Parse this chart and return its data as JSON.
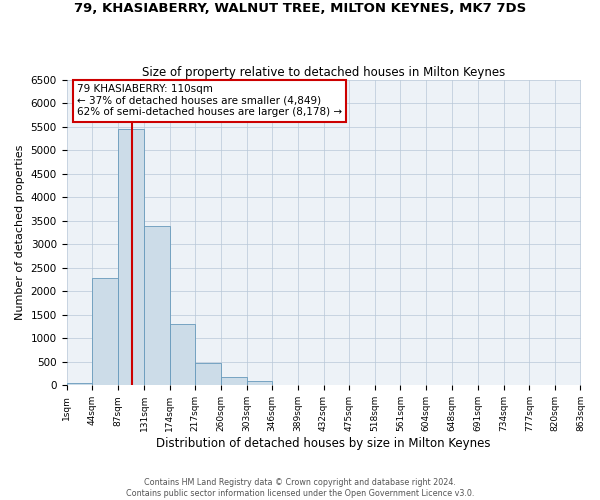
{
  "title": "79, KHASIABERRY, WALNUT TREE, MILTON KEYNES, MK7 7DS",
  "subtitle": "Size of property relative to detached houses in Milton Keynes",
  "xlabel": "Distribution of detached houses by size in Milton Keynes",
  "ylabel": "Number of detached properties",
  "bar_color": "#ccdce8",
  "bar_edge_color": "#6699bb",
  "bin_edges": [
    1,
    44,
    87,
    131,
    174,
    217,
    260,
    303,
    346,
    389,
    432,
    475,
    518,
    561,
    604,
    648,
    691,
    734,
    777,
    820,
    863
  ],
  "bar_heights": [
    60,
    2280,
    5460,
    3390,
    1310,
    480,
    185,
    95,
    15,
    0,
    0,
    0,
    0,
    0,
    0,
    0,
    0,
    0,
    0,
    0
  ],
  "property_size": 110,
  "vline_color": "#cc0000",
  "annotation_line1": "79 KHASIABERRY: 110sqm",
  "annotation_line2": "← 37% of detached houses are smaller (4,849)",
  "annotation_line3": "62% of semi-detached houses are larger (8,178) →",
  "annotation_box_color": "#ffffff",
  "annotation_box_edge": "#cc0000",
  "ylim": [
    0,
    6500
  ],
  "yticks": [
    0,
    500,
    1000,
    1500,
    2000,
    2500,
    3000,
    3500,
    4000,
    4500,
    5000,
    5500,
    6000,
    6500
  ],
  "footer_line1": "Contains HM Land Registry data © Crown copyright and database right 2024.",
  "footer_line2": "Contains public sector information licensed under the Open Government Licence v3.0.",
  "tick_labels": [
    "1sqm",
    "44sqm",
    "87sqm",
    "131sqm",
    "174sqm",
    "217sqm",
    "260sqm",
    "303sqm",
    "346sqm",
    "389sqm",
    "432sqm",
    "475sqm",
    "518sqm",
    "561sqm",
    "604sqm",
    "648sqm",
    "691sqm",
    "734sqm",
    "777sqm",
    "820sqm",
    "863sqm"
  ]
}
